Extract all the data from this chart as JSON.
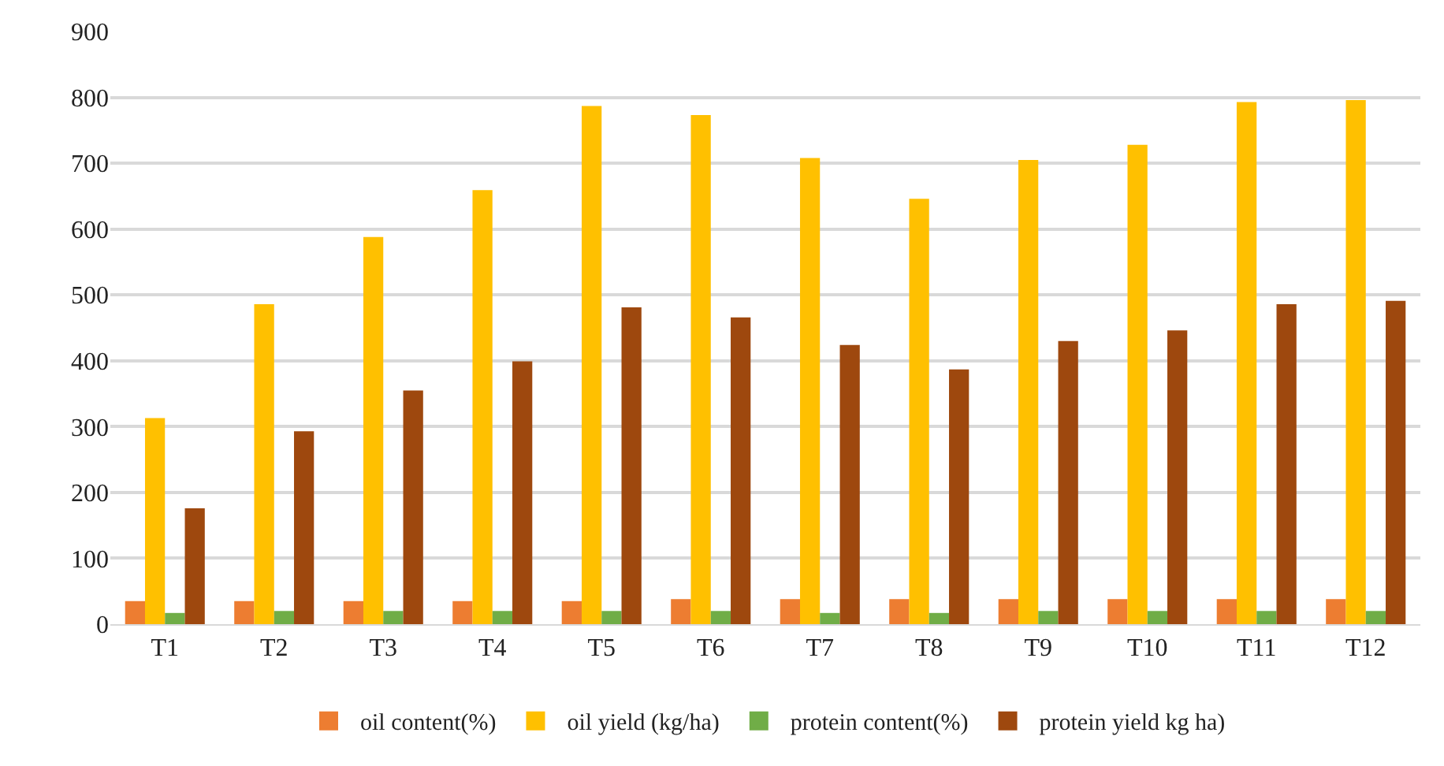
{
  "chart_data": {
    "type": "bar",
    "categories": [
      "T1",
      "T2",
      "T3",
      "T4",
      "T5",
      "T6",
      "T7",
      "T8",
      "T9",
      "T10",
      "T11",
      "T12"
    ],
    "series": [
      {
        "name": "oil content(%)",
        "color": "#ed7d31",
        "values": [
          35,
          35,
          35,
          35,
          35,
          38,
          38,
          38,
          38,
          38,
          38,
          38
        ]
      },
      {
        "name": "oil yield (kg/ha)",
        "color": "#ffc000",
        "values": [
          313,
          486,
          588,
          659,
          787,
          773,
          708,
          646,
          705,
          728,
          793,
          796
        ]
      },
      {
        "name": "protein content(%)",
        "color": "#70ad47",
        "values": [
          17,
          20,
          20,
          20,
          20,
          20,
          17,
          17,
          20,
          20,
          20,
          20
        ]
      },
      {
        "name": "protein yield kg ha)",
        "color": "#9e480e",
        "values": [
          176,
          293,
          355,
          399,
          481,
          466,
          424,
          387,
          430,
          446,
          486,
          491
        ]
      }
    ],
    "ylim": [
      0,
      900
    ],
    "yticks": [
      0,
      100,
      200,
      300,
      400,
      500,
      600,
      700,
      800,
      900
    ],
    "grid": "y",
    "legend": "bottom"
  }
}
